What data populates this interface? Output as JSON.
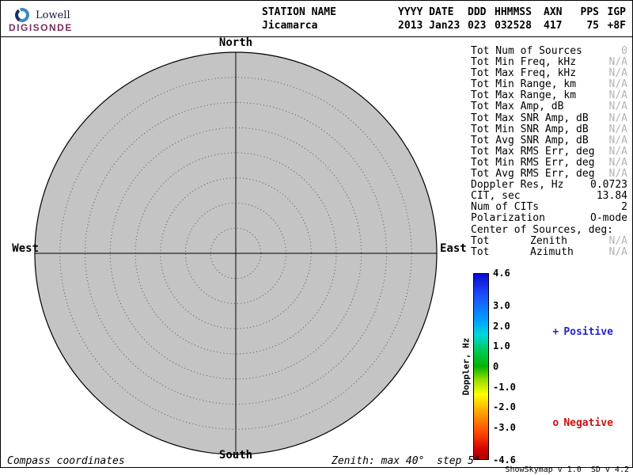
{
  "logo": {
    "name": "Lowell",
    "brand": "DIGISONDE"
  },
  "header": {
    "fields": [
      {
        "label": "STATION NAME",
        "value": "Jicamarca"
      },
      {
        "label": "YYYY DATE",
        "value": "2013 Jan23"
      },
      {
        "label": "DDD",
        "value": "023"
      },
      {
        "label": "HHMMSS",
        "value": "032528"
      },
      {
        "label": "AXN",
        "value": "417"
      },
      {
        "label": "PPS",
        "value": "75"
      },
      {
        "label": "IGP",
        "value": "+8F"
      }
    ]
  },
  "compass": {
    "north": "North",
    "south": "South",
    "west": "West",
    "east": "East"
  },
  "stats": {
    "rows": [
      {
        "label": "Tot Num of Sources",
        "value": "0",
        "muted": true
      },
      {
        "label": "Tot Min Freq, kHz",
        "value": "N/A",
        "muted": true
      },
      {
        "label": "Tot Max Freq, kHz",
        "value": "N/A",
        "muted": true
      },
      {
        "label": "Tot Min Range, km",
        "value": "N/A",
        "muted": true
      },
      {
        "label": "Tot Max Range, km",
        "value": "N/A",
        "muted": true
      },
      {
        "label": "Tot Max Amp, dB",
        "value": "N/A",
        "muted": true
      },
      {
        "label": "Tot Max SNR Amp, dB",
        "value": "N/A",
        "muted": true
      },
      {
        "label": "Tot Min SNR Amp, dB",
        "value": "N/A",
        "muted": true
      },
      {
        "label": "Tot Avg SNR Amp, dB",
        "value": "N/A",
        "muted": true
      },
      {
        "label": "Tot Max RMS Err, deg",
        "value": "N/A",
        "muted": true
      },
      {
        "label": "Tot Min RMS Err, deg",
        "value": "N/A",
        "muted": true
      },
      {
        "label": "Tot Avg RMS Err, deg",
        "value": "N/A",
        "muted": true
      },
      {
        "label": "Doppler Res, Hz",
        "value": "0.0723",
        "muted": false
      },
      {
        "label": "CIT, sec",
        "value": "13.84",
        "muted": false
      },
      {
        "label": "Num of CITs",
        "value": "2",
        "muted": false
      },
      {
        "label": "Polarization",
        "value": "O-mode",
        "muted": false
      },
      {
        "label": "Center of Sources, deg:",
        "value": "",
        "muted": false
      },
      {
        "label": "Tot",
        "mid": "Zenith",
        "value": "N/A",
        "muted": true
      },
      {
        "label": "Tot",
        "mid": "Azimuth",
        "value": "N/A",
        "muted": true
      }
    ]
  },
  "colorbar": {
    "title": "Doppler, Hz",
    "max": 4.6,
    "min": -4.6,
    "ticks": [
      "4.6",
      "3.0",
      "2.0",
      "1.0",
      "0",
      "-1.0",
      "-2.0",
      "-3.0",
      "-4.6"
    ],
    "stops": [
      "#0a0ad2 0%",
      "#1e50ff 12%",
      "#00a0ff 25%",
      "#00d8d8 33%",
      "#00c850 42%",
      "#00b400 50%",
      "#96dc00 57%",
      "#ffff00 65%",
      "#ffa000 75%",
      "#ff4600 86%",
      "#d20000 95%",
      "#aa0000 100%"
    ]
  },
  "legend": {
    "positive_marker": "+",
    "positive": "Positive",
    "positive_color": "#2222cc",
    "negative_marker": "o",
    "negative": "Negative",
    "negative_color": "#cc1111"
  },
  "footer": {
    "left": "Compass coordinates",
    "center": "Zenith: max 40°  step 5°",
    "right": "ShowSkymap v 1.0  SD v 4.2"
  },
  "chart_data": {
    "type": "scatter",
    "projection": "polar-skymap",
    "station": "Jicamarca",
    "date": "2013 Jan23",
    "day_of_year": 23,
    "time_hhmmss": "032528",
    "points": [],
    "num_sources": 0,
    "zenith_max_deg": 40,
    "zenith_step_deg": 5,
    "rings_deg": [
      5,
      10,
      15,
      20,
      25,
      30,
      35,
      40
    ],
    "colorbar": {
      "label": "Doppler, Hz",
      "range": [
        -4.6,
        4.6
      ],
      "ticks": [
        4.6,
        3.0,
        2.0,
        1.0,
        0,
        -1.0,
        -2.0,
        -3.0,
        -4.6
      ]
    },
    "legend": [
      "+ Positive",
      "o Negative"
    ],
    "coordinates": "Compass coordinates"
  }
}
